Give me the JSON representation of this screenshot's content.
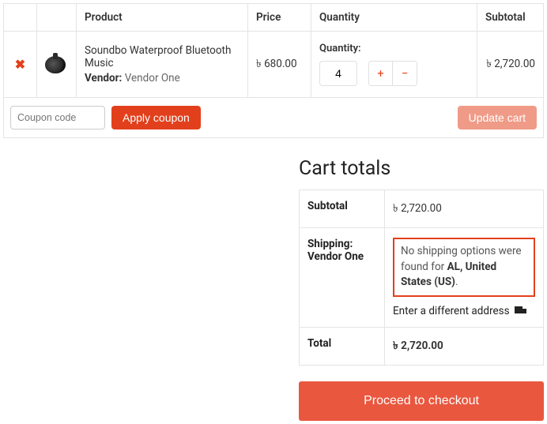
{
  "cart": {
    "headers": {
      "product": "Product",
      "price": "Price",
      "quantity": "Quantity",
      "subtotal": "Subtotal"
    },
    "item": {
      "title": "Soundbo Waterproof Bluetooth Music",
      "vendor_label": "Vendor:",
      "vendor_name": "Vendor One",
      "price": "৳ 680.00",
      "quantity_label": "Quantity:",
      "quantity_value": "4",
      "subtotal": "৳ 2,720.00"
    },
    "coupon_placeholder": "Coupon code",
    "apply_coupon_label": "Apply coupon",
    "update_cart_label": "Update cart"
  },
  "totals": {
    "title": "Cart totals",
    "subtotal_label": "Subtotal",
    "subtotal_value": "৳ 2,720.00",
    "shipping_label": "Shipping: Vendor One",
    "shipping_msg_prefix": "No shipping options were found for ",
    "shipping_location": "AL, United States (US)",
    "shipping_msg_suffix": ".",
    "diff_address": "Enter a different address",
    "total_label": "Total",
    "total_value": "৳ 2,720.00"
  },
  "checkout_label": "Proceed to checkout",
  "colors": {
    "accent": "#e2401c",
    "accent_light": "#ef9b88",
    "checkout": "#e9573f",
    "border": "#e4e4e4"
  }
}
